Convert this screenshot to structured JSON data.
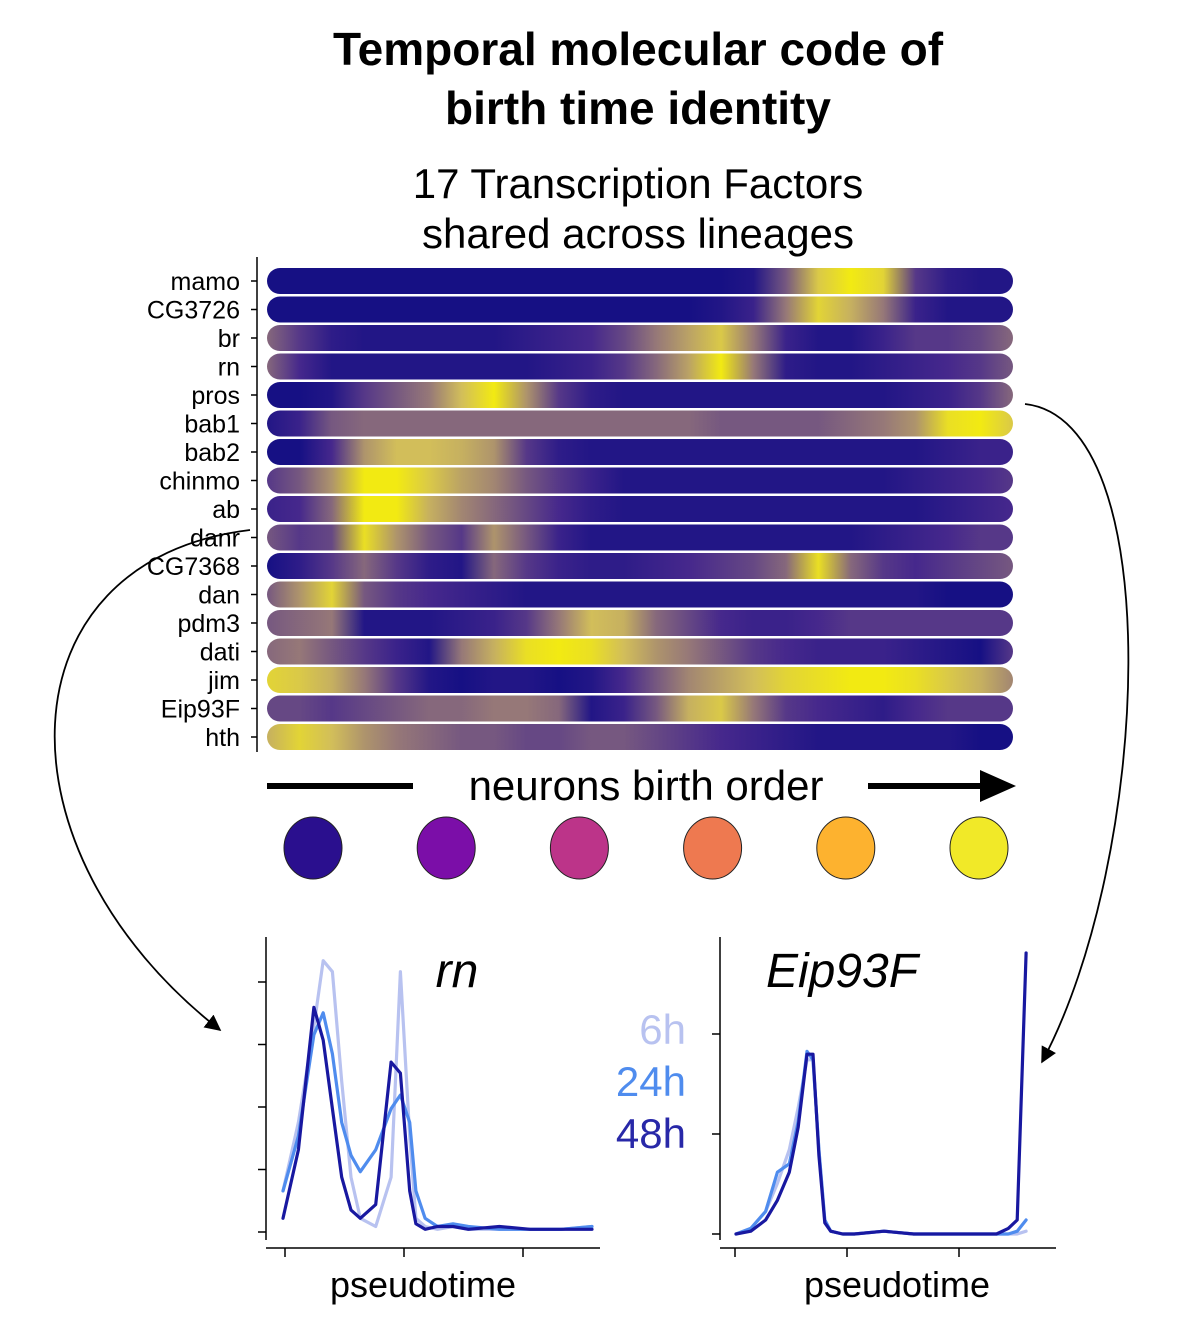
{
  "title": "Temporal molecular code of birth time identity",
  "title_lines": [
    "Temporal molecular code of",
    "birth time identity"
  ],
  "subtitle_lines": [
    "17 Transcription Factors",
    "shared across lineages"
  ],
  "chart_data": [
    {
      "type": "heatmap",
      "title": "17 Transcription Factors shared across lineages",
      "xlabel": "neurons birth order",
      "ylabel": "",
      "rows": [
        "mamo",
        "CG3726",
        "br",
        "rn",
        "pros",
        "bab1",
        "bab2",
        "chinmo",
        "ab",
        "danr",
        "CG7368",
        "dan",
        "pdm3",
        "dati",
        "jim",
        "Eip93F",
        "hth"
      ],
      "columns_note": "",
      "x_bins": 24,
      "scale": "plasma (low = dark blue, high = yellow)",
      "values": [
        [
          0.05,
          0.05,
          0.05,
          0.05,
          0.05,
          0.05,
          0.05,
          0.05,
          0.05,
          0.05,
          0.05,
          0.05,
          0.05,
          0.05,
          0.05,
          0.1,
          0.4,
          0.8,
          0.95,
          0.85,
          0.3,
          0.15,
          0.1,
          0.1
        ],
        [
          0.05,
          0.05,
          0.05,
          0.05,
          0.05,
          0.05,
          0.05,
          0.05,
          0.05,
          0.05,
          0.05,
          0.05,
          0.05,
          0.05,
          0.1,
          0.2,
          0.5,
          0.85,
          0.7,
          0.5,
          0.2,
          0.1,
          0.1,
          0.1
        ],
        [
          0.45,
          0.3,
          0.15,
          0.1,
          0.1,
          0.1,
          0.1,
          0.1,
          0.15,
          0.2,
          0.25,
          0.35,
          0.5,
          0.65,
          0.8,
          0.5,
          0.2,
          0.1,
          0.1,
          0.2,
          0.3,
          0.3,
          0.35,
          0.45
        ],
        [
          0.45,
          0.25,
          0.1,
          0.1,
          0.1,
          0.1,
          0.1,
          0.1,
          0.1,
          0.15,
          0.2,
          0.3,
          0.45,
          0.65,
          0.95,
          0.5,
          0.15,
          0.1,
          0.1,
          0.15,
          0.2,
          0.25,
          0.3,
          0.4
        ],
        [
          0.05,
          0.05,
          0.1,
          0.3,
          0.4,
          0.5,
          0.75,
          0.95,
          0.6,
          0.3,
          0.15,
          0.1,
          0.1,
          0.1,
          0.1,
          0.1,
          0.1,
          0.1,
          0.1,
          0.1,
          0.15,
          0.2,
          0.3,
          0.45
        ],
        [
          0.1,
          0.2,
          0.4,
          0.45,
          0.45,
          0.45,
          0.45,
          0.45,
          0.45,
          0.45,
          0.45,
          0.45,
          0.45,
          0.45,
          0.4,
          0.4,
          0.4,
          0.4,
          0.45,
          0.5,
          0.6,
          0.9,
          0.95,
          0.8
        ],
        [
          0.05,
          0.05,
          0.25,
          0.6,
          0.75,
          0.75,
          0.7,
          0.6,
          0.3,
          0.15,
          0.1,
          0.1,
          0.1,
          0.1,
          0.1,
          0.1,
          0.1,
          0.1,
          0.1,
          0.1,
          0.1,
          0.15,
          0.2,
          0.2
        ],
        [
          0.3,
          0.4,
          0.6,
          0.95,
          0.95,
          0.8,
          0.65,
          0.55,
          0.4,
          0.3,
          0.2,
          0.1,
          0.1,
          0.1,
          0.1,
          0.1,
          0.1,
          0.1,
          0.1,
          0.1,
          0.15,
          0.2,
          0.25,
          0.3
        ],
        [
          0.2,
          0.25,
          0.45,
          0.95,
          0.95,
          0.7,
          0.55,
          0.45,
          0.35,
          0.25,
          0.15,
          0.1,
          0.1,
          0.1,
          0.1,
          0.1,
          0.1,
          0.1,
          0.1,
          0.1,
          0.1,
          0.15,
          0.2,
          0.25
        ],
        [
          0.4,
          0.3,
          0.35,
          0.9,
          0.6,
          0.4,
          0.3,
          0.6,
          0.4,
          0.2,
          0.1,
          0.1,
          0.1,
          0.1,
          0.1,
          0.1,
          0.1,
          0.1,
          0.1,
          0.15,
          0.2,
          0.25,
          0.3,
          0.3
        ],
        [
          0.05,
          0.15,
          0.3,
          0.45,
          0.3,
          0.15,
          0.1,
          0.45,
          0.3,
          0.2,
          0.15,
          0.15,
          0.2,
          0.25,
          0.3,
          0.35,
          0.45,
          0.9,
          0.45,
          0.3,
          0.25,
          0.3,
          0.35,
          0.4
        ],
        [
          0.4,
          0.6,
          0.85,
          0.4,
          0.3,
          0.25,
          0.2,
          0.15,
          0.1,
          0.1,
          0.1,
          0.1,
          0.1,
          0.1,
          0.1,
          0.1,
          0.1,
          0.1,
          0.1,
          0.1,
          0.1,
          0.05,
          0.05,
          0.05
        ],
        [
          0.4,
          0.45,
          0.5,
          0.1,
          0.1,
          0.1,
          0.15,
          0.2,
          0.3,
          0.5,
          0.75,
          0.7,
          0.45,
          0.35,
          0.25,
          0.2,
          0.2,
          0.25,
          0.3,
          0.3,
          0.3,
          0.3,
          0.3,
          0.3
        ],
        [
          0.45,
          0.5,
          0.4,
          0.3,
          0.2,
          0.1,
          0.5,
          0.7,
          0.9,
          0.95,
          0.9,
          0.75,
          0.6,
          0.5,
          0.4,
          0.3,
          0.25,
          0.2,
          0.2,
          0.2,
          0.15,
          0.1,
          0.05,
          0.3
        ],
        [
          0.85,
          0.8,
          0.7,
          0.5,
          0.3,
          0.1,
          0.05,
          0.1,
          0.1,
          0.05,
          0.1,
          0.25,
          0.4,
          0.55,
          0.65,
          0.75,
          0.85,
          0.9,
          0.95,
          0.95,
          0.9,
          0.8,
          0.7,
          0.55
        ],
        [
          0.35,
          0.35,
          0.3,
          0.35,
          0.4,
          0.45,
          0.45,
          0.5,
          0.5,
          0.45,
          0.1,
          0.2,
          0.4,
          0.7,
          0.8,
          0.5,
          0.3,
          0.25,
          0.2,
          0.15,
          0.25,
          0.3,
          0.3,
          0.3
        ],
        [
          0.7,
          0.85,
          0.75,
          0.6,
          0.5,
          0.45,
          0.4,
          0.4,
          0.35,
          0.35,
          0.4,
          0.4,
          0.35,
          0.3,
          0.25,
          0.2,
          0.15,
          0.1,
          0.1,
          0.1,
          0.1,
          0.1,
          0.05,
          0.05
        ]
      ],
      "colorbar_colors": [
        "#2a0f8e",
        "#7b0ea8",
        "#bc3489",
        "#ee7950",
        "#fdb22f",
        "#f1e928"
      ]
    },
    {
      "type": "line",
      "title": "rn",
      "xlabel": "pseudotime",
      "ylabel": "",
      "xlim": [
        0,
        1
      ],
      "ylim": [
        0,
        1
      ],
      "x": [
        0.0,
        0.05,
        0.1,
        0.13,
        0.16,
        0.19,
        0.22,
        0.25,
        0.3,
        0.35,
        0.38,
        0.41,
        0.43,
        0.46,
        0.5,
        0.55,
        0.6,
        0.7,
        0.8,
        0.9,
        1.0
      ],
      "series": [
        {
          "name": "6h",
          "color": "#b8c2f0",
          "values": [
            0.15,
            0.4,
            0.75,
            0.99,
            0.95,
            0.55,
            0.2,
            0.05,
            0.02,
            0.2,
            0.95,
            0.35,
            0.05,
            0.02,
            0.01,
            0.02,
            0.01,
            0.01,
            0.01,
            0.01,
            0.02
          ]
        },
        {
          "name": "24h",
          "color": "#4f8cee",
          "values": [
            0.15,
            0.35,
            0.72,
            0.8,
            0.65,
            0.4,
            0.28,
            0.22,
            0.3,
            0.45,
            0.5,
            0.4,
            0.15,
            0.05,
            0.02,
            0.03,
            0.02,
            0.01,
            0.01,
            0.01,
            0.02
          ]
        },
        {
          "name": "48h",
          "color": "#1818a0",
          "values": [
            0.05,
            0.3,
            0.82,
            0.7,
            0.45,
            0.2,
            0.08,
            0.05,
            0.1,
            0.62,
            0.58,
            0.15,
            0.03,
            0.01,
            0.02,
            0.02,
            0.01,
            0.02,
            0.01,
            0.01,
            0.01
          ]
        }
      ]
    },
    {
      "type": "line",
      "title": "Eip93F",
      "xlabel": "pseudotime",
      "ylabel": "",
      "xlim": [
        0,
        1
      ],
      "ylim": [
        0,
        1
      ],
      "x": [
        0.0,
        0.05,
        0.1,
        0.14,
        0.18,
        0.21,
        0.24,
        0.26,
        0.28,
        0.3,
        0.32,
        0.36,
        0.4,
        0.5,
        0.6,
        0.7,
        0.8,
        0.88,
        0.92,
        0.95,
        0.98
      ],
      "series": [
        {
          "name": "6h",
          "color": "#b8c2f0",
          "values": [
            0.0,
            0.02,
            0.08,
            0.18,
            0.3,
            0.45,
            0.62,
            0.62,
            0.3,
            0.05,
            0.01,
            0.0,
            0.0,
            0.01,
            0.0,
            0.0,
            0.0,
            0.0,
            0.0,
            0.0,
            0.01
          ]
        },
        {
          "name": "24h",
          "color": "#4f8cee",
          "values": [
            0.0,
            0.02,
            0.08,
            0.22,
            0.25,
            0.4,
            0.65,
            0.62,
            0.3,
            0.05,
            0.01,
            0.0,
            0.0,
            0.01,
            0.0,
            0.0,
            0.0,
            0.0,
            0.0,
            0.01,
            0.05
          ]
        },
        {
          "name": "48h",
          "color": "#1818a0",
          "values": [
            0.0,
            0.01,
            0.05,
            0.12,
            0.22,
            0.38,
            0.64,
            0.64,
            0.28,
            0.04,
            0.01,
            0.0,
            0.0,
            0.01,
            0.0,
            0.0,
            0.0,
            0.0,
            0.02,
            0.05,
            1.0
          ]
        }
      ]
    }
  ]
}
